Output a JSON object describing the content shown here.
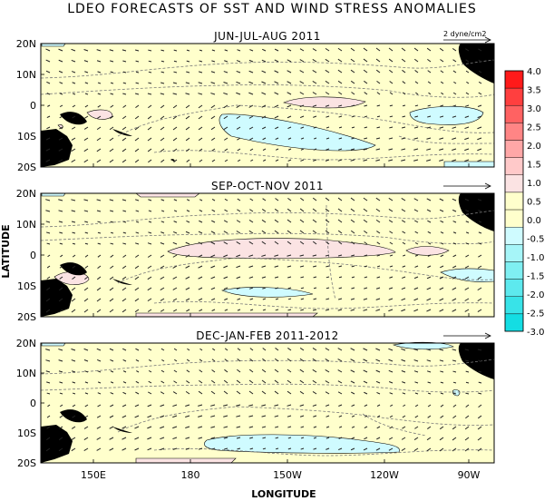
{
  "title": "LDEO FORECASTS OF SST AND WIND STRESS ANOMALIES",
  "ylabel": "LATITUDE",
  "xlabel": "LONGITUDE",
  "lat_labels": [
    "20N",
    "10N",
    "0",
    "10S",
    "20S"
  ],
  "lon_labels": [
    "150E",
    "180",
    "150W",
    "120W",
    "90W"
  ],
  "vector_scale_label": "2 dyne/cm2",
  "panels": [
    {
      "title": "JUN-JUL-AUG 2011"
    },
    {
      "title": "SEP-OCT-NOV 2011"
    },
    {
      "title": "DEC-JAN-FEB 2011-2012"
    }
  ],
  "colorbar": {
    "tick_labels": [
      "4.0",
      "3.5",
      "3.0",
      "2.5",
      "2.0",
      "1.5",
      "1.0",
      "0.5",
      "0.0",
      "-0.5",
      "-1.0",
      "-1.5",
      "-2.0",
      "-2.5",
      "-3.0"
    ],
    "colors": [
      "#ff1a1a",
      "#ff3f3f",
      "#ff6262",
      "#ff8585",
      "#ffa7a7",
      "#ffc9c9",
      "#fbe3e3",
      "#ffffcc",
      "#ffffcc",
      "#cffbff",
      "#a6f5f8",
      "#7feff2",
      "#5de9ee",
      "#38e3e8",
      "#14dde3"
    ]
  },
  "colors": {
    "neutral": "#ffffcc",
    "warm": "#fbe3e3",
    "cool": "#cffbff",
    "land": "#000000",
    "contour": "#7a7a7a"
  }
}
